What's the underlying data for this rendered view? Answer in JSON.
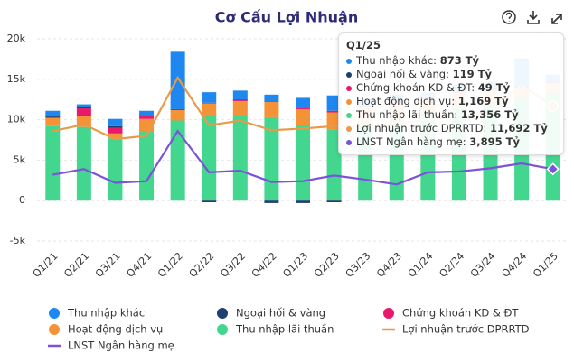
{
  "chart_data": {
    "type": "bar",
    "title": "Cơ Cấu Lợi Nhuận",
    "categories": [
      "Q1/21",
      "Q2/21",
      "Q3/21",
      "Q4/21",
      "Q1/22",
      "Q2/22",
      "Q3/22",
      "Q4/22",
      "Q1/23",
      "Q2/23",
      "Q3/23",
      "Q4/23",
      "Q1/24",
      "Q2/24",
      "Q3/24",
      "Q4/24",
      "Q1/25"
    ],
    "ylim": [
      -5000,
      20000
    ],
    "yticks": [
      {
        "value": -5000,
        "label": "-5k"
      },
      0,
      {
        "value": 5000,
        "label": "5k"
      },
      {
        "value": 10000,
        "label": "10k"
      },
      {
        "value": 15000,
        "label": "15k"
      },
      {
        "value": 20000,
        "label": "20k"
      }
    ],
    "grid": true,
    "series": [
      {
        "name": "Thu nhập khác",
        "type": "bar",
        "color": "#1e88f0",
        "values": [
          700,
          300,
          900,
          600,
          7100,
          1300,
          1100,
          800,
          1200,
          1900,
          900,
          800,
          700,
          900,
          900,
          3500,
          873
        ],
        "value_labels": [
          null,
          null,
          null,
          null,
          null,
          null,
          null,
          null,
          null,
          null,
          null,
          null,
          null,
          null,
          null,
          null,
          "873 Tỷ"
        ]
      },
      {
        "name": "Ngoại hối & vàng",
        "type": "bar",
        "color": "#1d3f72",
        "values": [
          100,
          200,
          200,
          100,
          100,
          -200,
          100,
          -300,
          -300,
          -200,
          100,
          100,
          100,
          100,
          100,
          150,
          119
        ],
        "value_labels": [
          null,
          null,
          null,
          null,
          null,
          null,
          null,
          null,
          null,
          null,
          null,
          null,
          null,
          null,
          null,
          null,
          "119 Tỷ"
        ]
      },
      {
        "name": "Chứng khoán KD & ĐT",
        "type": "bar",
        "color": "#e8196a",
        "values": [
          100,
          1000,
          700,
          300,
          0,
          100,
          100,
          100,
          200,
          200,
          100,
          100,
          100,
          100,
          100,
          50,
          49
        ],
        "value_labels": [
          null,
          null,
          null,
          null,
          null,
          null,
          null,
          null,
          null,
          null,
          null,
          null,
          null,
          null,
          null,
          null,
          "49 Tỷ"
        ]
      },
      {
        "name": "Hoạt động dịch vụ",
        "type": "bar",
        "color": "#f39237",
        "values": [
          1000,
          1300,
          600,
          1600,
          1300,
          1600,
          1800,
          1900,
          1900,
          2100,
          2000,
          2100,
          1700,
          1800,
          1600,
          1100,
          1169
        ],
        "value_labels": [
          null,
          null,
          null,
          null,
          null,
          null,
          null,
          null,
          null,
          null,
          null,
          null,
          null,
          null,
          null,
          null,
          "1,169 Tỷ"
        ]
      },
      {
        "name": "Thu nhập lãi thuần",
        "type": "bar",
        "color": "#43d68e",
        "values": [
          9200,
          9100,
          7700,
          8500,
          9900,
          10400,
          10500,
          10300,
          9400,
          8800,
          9500,
          10000,
          10800,
          11500,
          12000,
          12800,
          13356
        ],
        "value_labels": [
          null,
          null,
          null,
          null,
          null,
          null,
          null,
          null,
          null,
          null,
          null,
          null,
          null,
          null,
          null,
          null,
          "13,356 Tỷ"
        ]
      },
      {
        "name": "Lợi nhuận trước DPRRTD",
        "type": "line",
        "color": "#e89a4a",
        "values": [
          8600,
          9400,
          7600,
          8000,
          15200,
          9300,
          9900,
          8700,
          8900,
          9200,
          9200,
          9500,
          10000,
          10500,
          11000,
          14300,
          11692
        ],
        "value_labels": [
          null,
          null,
          null,
          null,
          null,
          null,
          null,
          null,
          null,
          null,
          null,
          null,
          null,
          null,
          null,
          null,
          "11,692 Tỷ"
        ]
      },
      {
        "name": "LNST Ngân hàng mẹ",
        "type": "line",
        "color": "#7b52d9",
        "values": [
          3200,
          3900,
          2200,
          2400,
          8600,
          3500,
          3700,
          2300,
          2400,
          3100,
          2600,
          2000,
          3500,
          3600,
          4000,
          4600,
          3895
        ],
        "value_labels": [
          null,
          null,
          null,
          null,
          null,
          null,
          null,
          null,
          null,
          null,
          null,
          null,
          null,
          null,
          null,
          null,
          "3,895 Tỷ"
        ]
      }
    ]
  }
}
